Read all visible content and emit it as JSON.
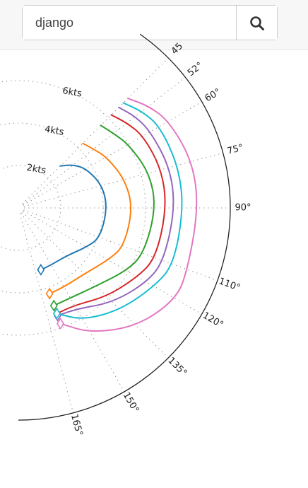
{
  "search": {
    "value": "django",
    "icon": "search-icon"
  },
  "chart_data": {
    "type": "line",
    "projection": "polar",
    "angle_unit": "degrees",
    "radial_unit": "kts",
    "radial_ticks": [
      {
        "value": 2,
        "label": "2kts"
      },
      {
        "value": 4,
        "label": "4kts"
      },
      {
        "value": 6,
        "label": "6kts"
      }
    ],
    "angle_ticks": [
      {
        "value": 45,
        "label": "45"
      },
      {
        "value": 52,
        "label": "52°"
      },
      {
        "value": 60,
        "label": "60°"
      },
      {
        "value": 75,
        "label": "75°"
      },
      {
        "value": 90,
        "label": "90°"
      },
      {
        "value": 110,
        "label": "110°"
      },
      {
        "value": 120,
        "label": "120°"
      },
      {
        "value": 135,
        "label": "135°"
      },
      {
        "value": 150,
        "label": "150°"
      },
      {
        "value": 165,
        "label": "165°"
      }
    ],
    "max_radius": 10,
    "grid": true,
    "series": [
      {
        "color": "#1f77b4",
        "angles": [
          45,
          52,
          60,
          75,
          90,
          110,
          120,
          135,
          150,
          160
        ],
        "speeds": [
          2.8,
          3.3,
          3.7,
          4.1,
          4.2,
          4.1,
          3.7,
          3.2,
          3.1,
          3.1
        ]
      },
      {
        "color": "#ff7f0e",
        "angles": [
          45,
          52,
          60,
          75,
          90,
          110,
          120,
          135,
          150,
          160
        ],
        "speeds": [
          4.3,
          4.5,
          4.8,
          5.2,
          5.4,
          5.3,
          4.9,
          4.4,
          4.3,
          4.3
        ]
      },
      {
        "color": "#2ca02c",
        "angles": [
          45,
          52,
          60,
          75,
          90,
          110,
          120,
          135,
          150,
          160
        ],
        "speeds": [
          5.5,
          5.7,
          6.0,
          6.4,
          6.5,
          6.3,
          5.9,
          5.2,
          4.9,
          4.9
        ]
      },
      {
        "color": "#d62728",
        "angles": [
          45,
          52,
          60,
          75,
          90,
          110,
          120,
          135,
          150,
          160
        ],
        "speeds": [
          6.2,
          6.5,
          6.8,
          7.0,
          7.0,
          6.9,
          6.5,
          5.9,
          5.3,
          5.3
        ]
      },
      {
        "color": "#9467bd",
        "angles": [
          45,
          52,
          60,
          75,
          90,
          110,
          120,
          135,
          150,
          160
        ],
        "speeds": [
          6.7,
          7.0,
          7.2,
          7.4,
          7.4,
          7.3,
          7.0,
          6.3,
          5.5,
          5.4
        ]
      },
      {
        "color": "#17becf",
        "angles": [
          45,
          52,
          60,
          75,
          90,
          110,
          120,
          135,
          150,
          160
        ],
        "speeds": [
          7.0,
          7.4,
          7.7,
          7.8,
          7.8,
          7.8,
          7.4,
          6.8,
          6.1,
          5.3
        ]
      },
      {
        "color": "#e377c2",
        "angles": [
          45,
          52,
          60,
          75,
          90,
          110,
          120,
          135,
          150,
          160
        ],
        "speeds": [
          7.3,
          7.8,
          8.2,
          8.5,
          8.5,
          8.5,
          8.6,
          7.9,
          6.8,
          5.8
        ]
      }
    ]
  }
}
